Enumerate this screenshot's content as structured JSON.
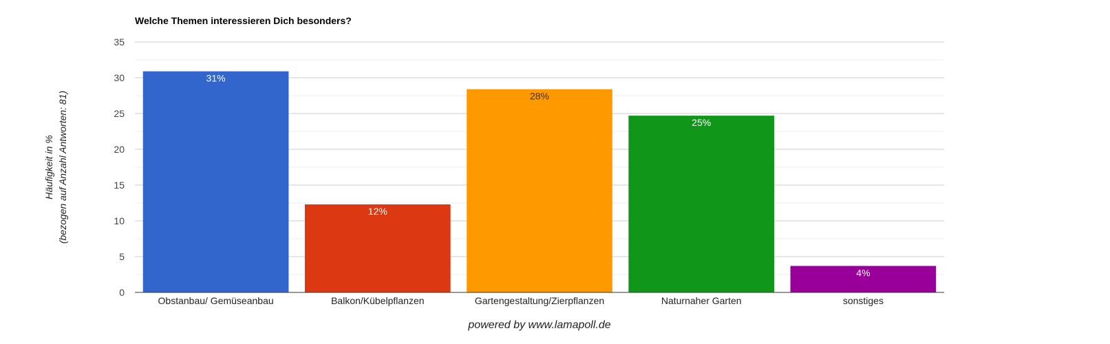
{
  "chart_data": {
    "type": "bar",
    "title": "Welche Themen interessieren Dich besonders?",
    "ylabel": "Häufigkeit in %",
    "ylabel_sub": "(bezogen auf Anzahl Antworten: 81)",
    "xlabel": "",
    "ylim": [
      0,
      35
    ],
    "yticks": [
      0,
      5,
      10,
      15,
      20,
      25,
      30,
      35
    ],
    "grid": true,
    "categories": [
      "Obstanbau/ Gemüseanbau",
      "Balkon/Kübelpflanzen",
      "Gartengestaltung/Zierpflanzen",
      "Naturnaher Garten",
      "sonstiges"
    ],
    "values": [
      30.9,
      12.3,
      28.4,
      24.7,
      3.7
    ],
    "data_labels": [
      "31%",
      "12%",
      "28%",
      "25%",
      "4%"
    ],
    "colors": [
      "#3366cc",
      "#dc3912",
      "#ff9900",
      "#109618",
      "#990099"
    ],
    "label_colors": [
      "#ffffff",
      "#ffffff",
      "#333333",
      "#ffffff",
      "#ffffff"
    ]
  },
  "footer": "powered by www.lamapoll.de"
}
